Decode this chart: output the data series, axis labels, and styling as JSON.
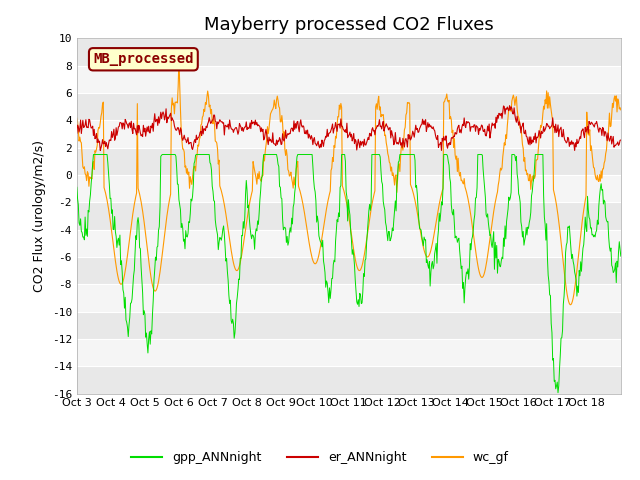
{
  "title": "Mayberry processed CO2 Fluxes",
  "ylabel": "CO2 Flux (urology/m2/s)",
  "ylim": [
    -16,
    10
  ],
  "yticks": [
    -16,
    -14,
    -12,
    -10,
    -8,
    -6,
    -4,
    -2,
    0,
    2,
    4,
    6,
    8,
    10
  ],
  "xlabels": [
    "Oct 3",
    "Oct 4",
    "Oct 5",
    "Oct 6",
    "Oct 7",
    "Oct 8",
    "Oct 9",
    "Oct 10",
    "Oct 11",
    "Oct 12",
    "Oct 13",
    "Oct 14",
    "Oct 15",
    "Oct 16",
    "Oct 17",
    "Oct 18"
  ],
  "xtick_positions": [
    0,
    1,
    2,
    3,
    4,
    5,
    6,
    7,
    8,
    9,
    10,
    11,
    12,
    13,
    14,
    15
  ],
  "n_points": 720,
  "legend_label": "MB_processed",
  "legend_box_facecolor": "#ffffcc",
  "legend_box_edgecolor": "#8b0000",
  "line_green": "#00dd00",
  "line_red": "#cc0000",
  "line_orange": "#ff9900",
  "legend_green": "gpp_ANNnight",
  "legend_red": "er_ANNnight",
  "legend_orange": "wc_gf",
  "bg_stripe_dark": "#e8e8e8",
  "bg_stripe_light": "#f5f5f5",
  "title_fontsize": 13,
  "axis_fontsize": 8,
  "label_fontsize": 9
}
